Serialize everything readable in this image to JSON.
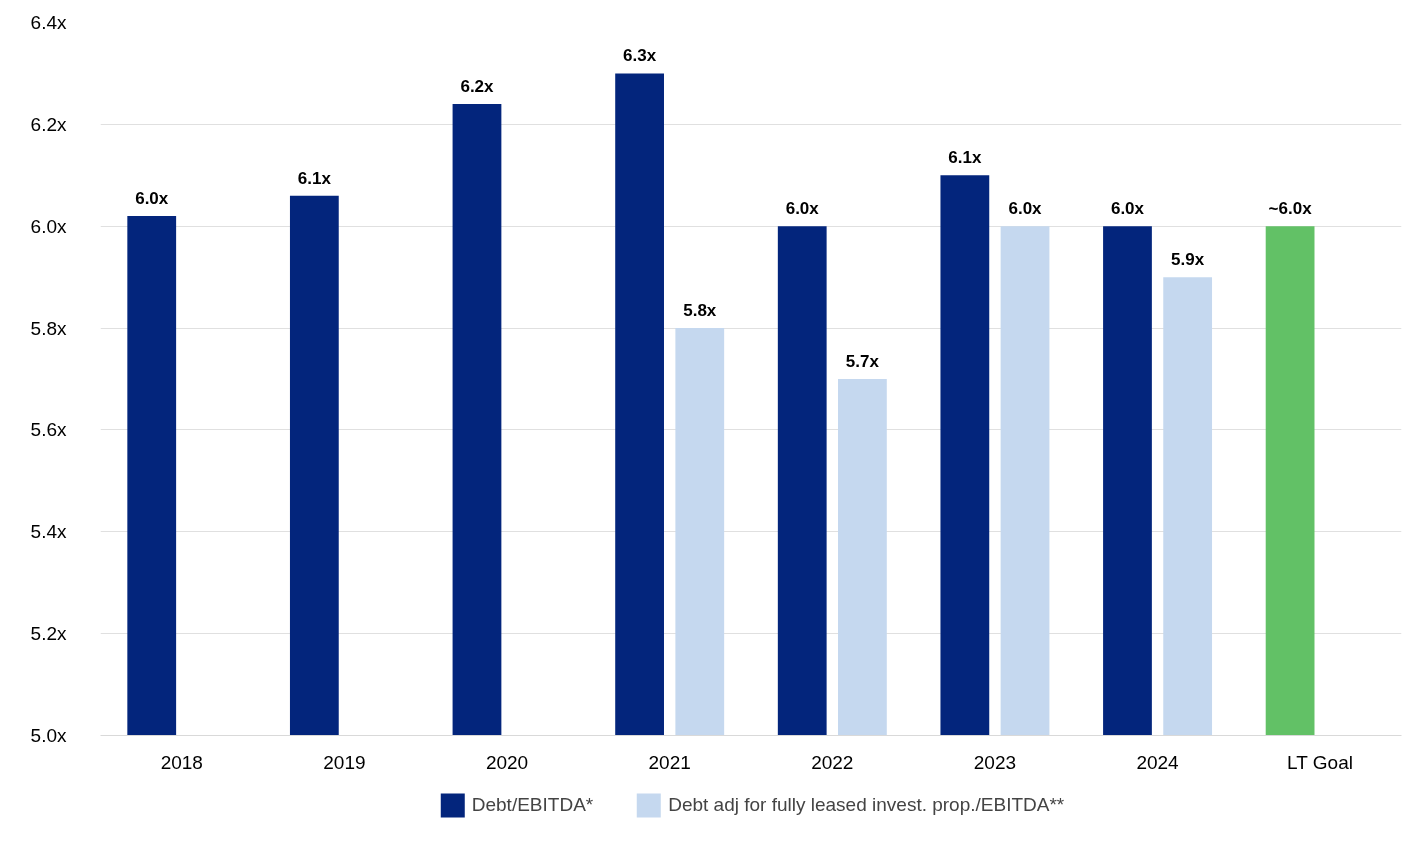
{
  "chart_data": {
    "type": "bar",
    "categories": [
      "2018",
      "2019",
      "2020",
      "2021",
      "2022",
      "2023",
      "2024",
      "LT Goal"
    ],
    "series": [
      {
        "name": "Debt/EBITDA*",
        "color": "#03257c",
        "colors": [
          "#03257c",
          "#03257c",
          "#03257c",
          "#03257c",
          "#03257c",
          "#03257c",
          "#03257c",
          "#62c166"
        ],
        "values": [
          6.02,
          6.06,
          6.24,
          6.3,
          6.0,
          6.1,
          6.0,
          6.0
        ],
        "value_labels": [
          "6.0x",
          "6.1x",
          "6.2x",
          "6.3x",
          "6.0x",
          "6.1x",
          "6.0x",
          "~6.0x"
        ]
      },
      {
        "name": "Debt adj for fully leased invest. prop./EBITDA**",
        "color": "#c5d8ef",
        "values": [
          null,
          null,
          null,
          5.8,
          5.7,
          6.0,
          5.9,
          null
        ],
        "value_labels": [
          null,
          null,
          null,
          "5.8x",
          "5.7x",
          "6.0x",
          "5.9x",
          null
        ]
      }
    ],
    "ylim": [
      5.0,
      6.4
    ],
    "yticks": [
      {
        "value": 5.0,
        "label": "5.0x"
      },
      {
        "value": 5.2,
        "label": "5.2x"
      },
      {
        "value": 5.4,
        "label": "5.4x"
      },
      {
        "value": 5.6,
        "label": "5.6x"
      },
      {
        "value": 5.8,
        "label": "5.8x"
      },
      {
        "value": 6.0,
        "label": "6.0x"
      },
      {
        "value": 6.2,
        "label": "6.2x"
      },
      {
        "value": 6.4,
        "label": "6.4x"
      }
    ],
    "grid": "y",
    "legend": "bottom"
  }
}
